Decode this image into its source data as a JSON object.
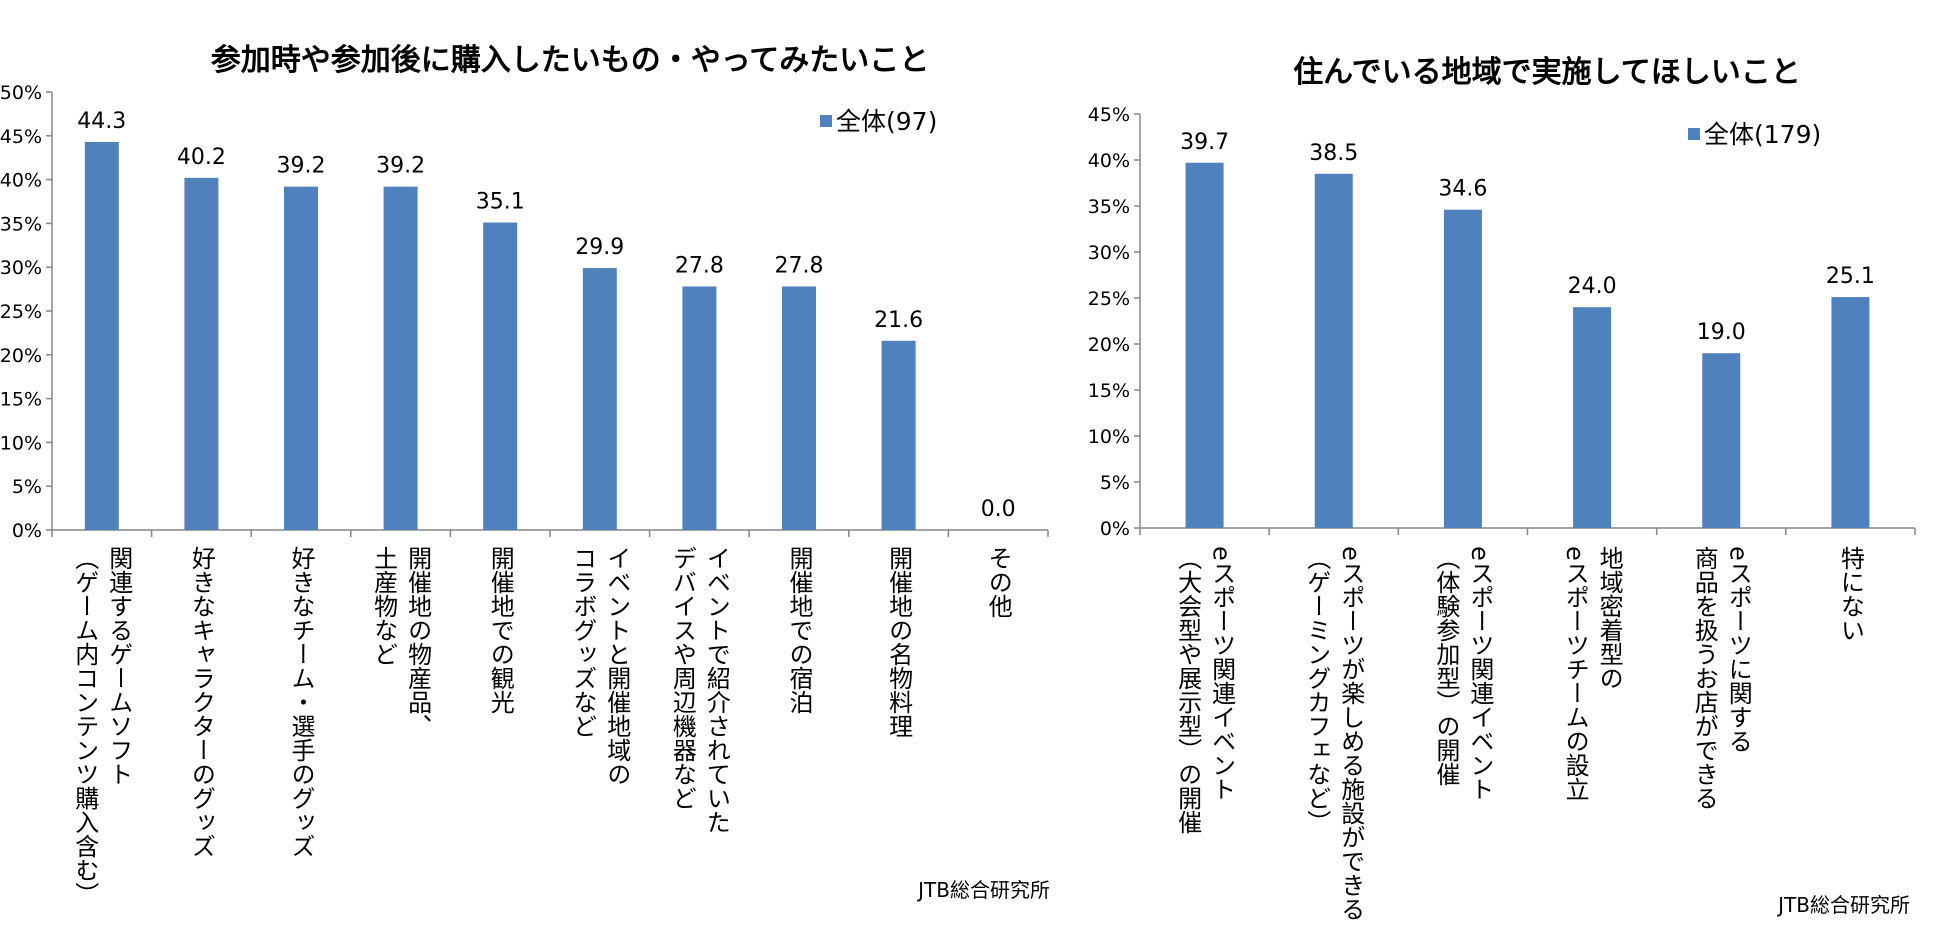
{
  "chart_data": [
    {
      "type": "bar",
      "title": "参加時や参加後に購入したいもの・やってみたいこと",
      "legend": "全体(97)",
      "legend_position": "top-right",
      "source": "JTB総合研究所",
      "ylim": [
        0,
        50
      ],
      "ytick_step": 5,
      "ytick_labels": [
        "0%",
        "5%",
        "10%",
        "15%",
        "20%",
        "25%",
        "30%",
        "35%",
        "40%",
        "45%",
        "50%"
      ],
      "color": "#4f81bd",
      "categories": [
        [
          "関連するゲームソフト",
          "（ゲーム内コンテンツ購入含む）"
        ],
        [
          "好きなキャラクターのグッズ"
        ],
        [
          "好きなチーム・選手のグッズ"
        ],
        [
          "開催地の物産品、",
          "土産物など"
        ],
        [
          "開催地での観光"
        ],
        [
          "イベントと開催地域の",
          "コラボグッズなど"
        ],
        [
          "イベントで紹介されていた",
          "デバイスや周辺機器など"
        ],
        [
          "開催地での宿泊"
        ],
        [
          "開催地の名物料理"
        ],
        [
          "その他"
        ]
      ],
      "values": [
        44.3,
        40.2,
        39.2,
        39.2,
        35.1,
        29.9,
        27.8,
        27.8,
        21.6,
        0.0
      ],
      "value_labels": [
        "44.3",
        "40.2",
        "39.2",
        "39.2",
        "35.1",
        "29.9",
        "27.8",
        "27.8",
        "21.6",
        "0.0"
      ]
    },
    {
      "type": "bar",
      "title": "住んでいる地域で実施してほしいこと",
      "legend": "全体(179)",
      "legend_position": "top-right",
      "source": "JTB総合研究所",
      "ylim": [
        0,
        45
      ],
      "ytick_step": 5,
      "ytick_labels": [
        "0%",
        "5%",
        "10%",
        "15%",
        "20%",
        "25%",
        "30%",
        "35%",
        "40%",
        "45%"
      ],
      "color": "#4f81bd",
      "categories": [
        [
          "eスポーツ関連イベント",
          "（大会型や展示型）の開催"
        ],
        [
          "eスポーツが楽しめる施設ができる",
          "（ゲーミングカフェなど）"
        ],
        [
          "eスポーツ関連イベント",
          "（体験参加型）の開催"
        ],
        [
          "地域密着型の",
          "eスポーツチームの設立"
        ],
        [
          "eスポーツに関する",
          "商品を扱うお店ができる"
        ],
        [
          "特にない"
        ]
      ],
      "values": [
        39.7,
        38.5,
        34.6,
        24.0,
        19.0,
        25.1
      ],
      "value_labels": [
        "39.7",
        "38.5",
        "34.6",
        "24.0",
        "19.0",
        "25.1"
      ]
    }
  ]
}
